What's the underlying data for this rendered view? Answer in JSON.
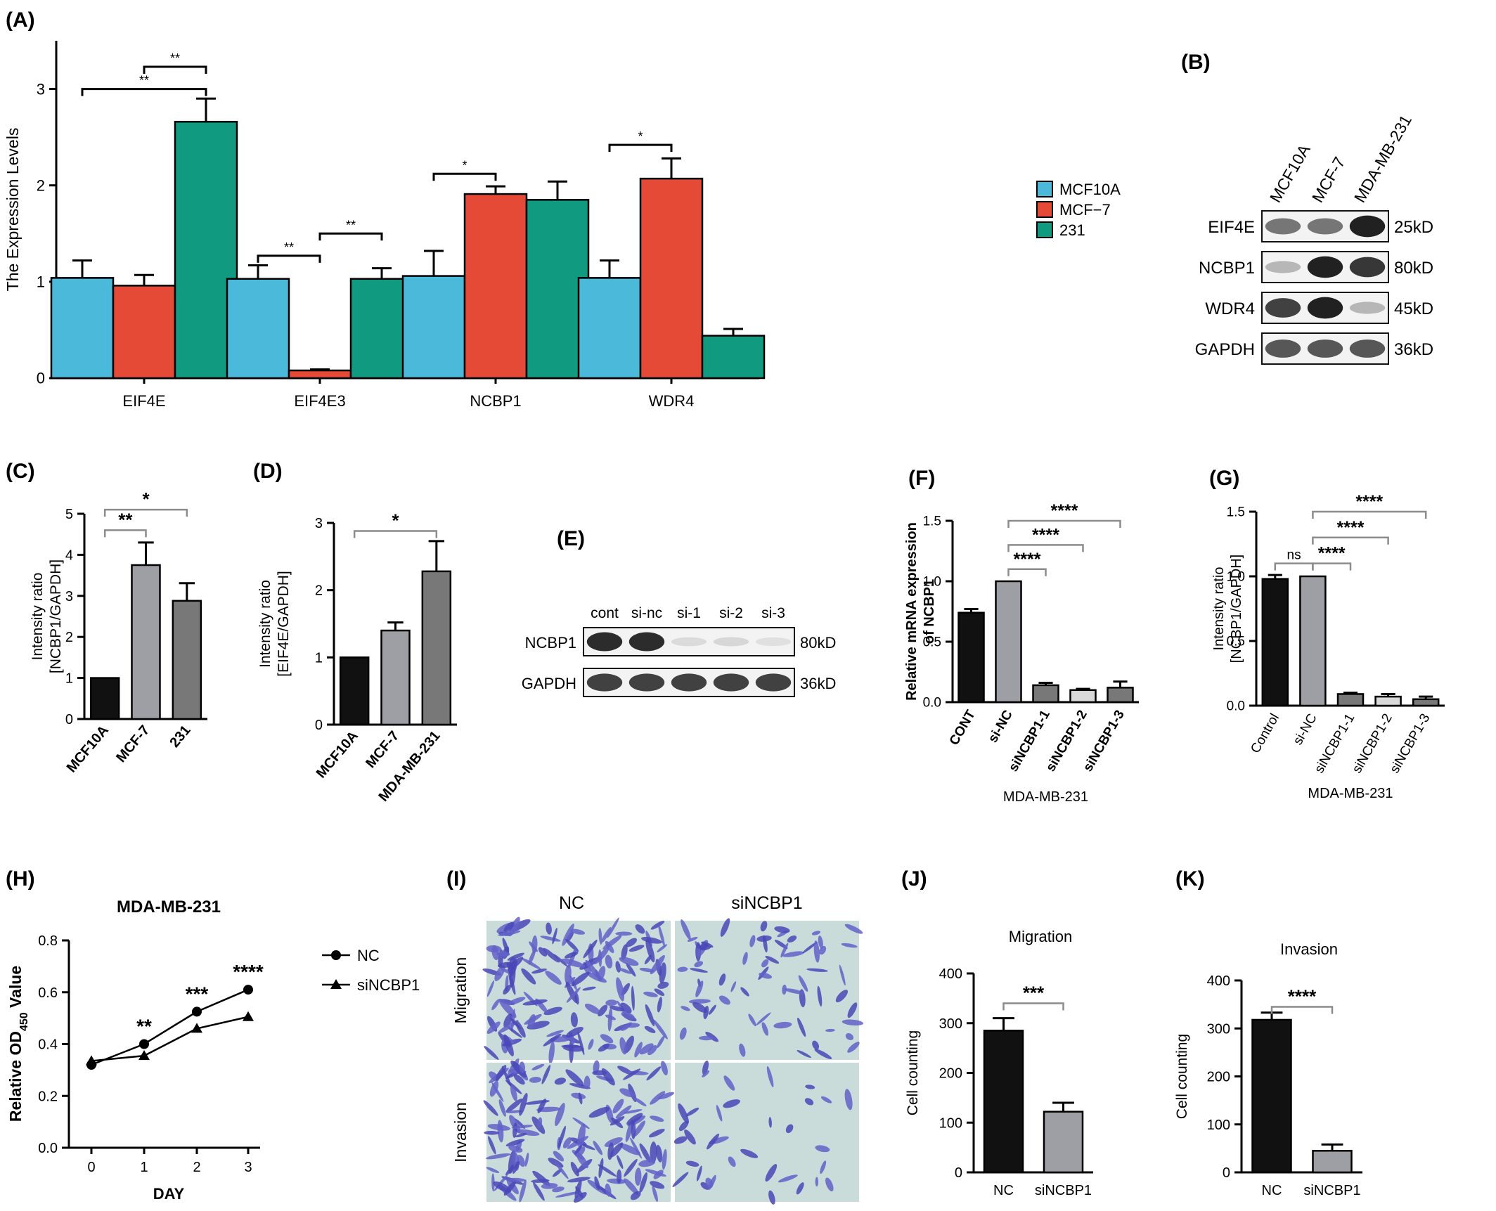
{
  "panel_labels": {
    "A": "(A)",
    "B": "(B)",
    "C": "(C)",
    "D": "(D)",
    "E": "(E)",
    "F": "(F)",
    "G": "(G)",
    "H": "(H)",
    "I": "(I)",
    "J": "(J)",
    "K": "(K)"
  },
  "colors": {
    "mcf10a": "#4bb9d9",
    "mcf7": "#e44a35",
    "c231": "#109a7f",
    "black": "#111111",
    "gray": "#9e9ea5",
    "darkgray": "#787878",
    "lightgray": "#d9d9d9"
  },
  "blots_B": {
    "lanes": [
      "MCF10A",
      "MCF-7",
      "MDA-MB-231"
    ],
    "rows": [
      {
        "name": "EIF4E",
        "size": "25kD",
        "intensity": [
          0.55,
          0.55,
          0.95
        ]
      },
      {
        "name": "NCBP1",
        "size": "80kD",
        "intensity": [
          0.25,
          0.95,
          0.85
        ]
      },
      {
        "name": "WDR4",
        "size": "45kD",
        "intensity": [
          0.8,
          0.95,
          0.25
        ]
      },
      {
        "name": "GAPDH",
        "size": "36kD",
        "intensity": [
          0.7,
          0.7,
          0.7
        ]
      }
    ]
  },
  "blots_E": {
    "lanes": [
      "cont",
      "si-nc",
      "si-1",
      "si-2",
      "si-3"
    ],
    "rows": [
      {
        "name": "NCBP1",
        "size": "80kD",
        "intensity": [
          0.9,
          0.9,
          0.08,
          0.1,
          0.06
        ]
      },
      {
        "name": "GAPDH",
        "size": "36kD",
        "intensity": [
          0.8,
          0.8,
          0.8,
          0.8,
          0.8
        ]
      }
    ]
  },
  "micro_I": {
    "cols": [
      "NC",
      "siNCBP1"
    ],
    "rows": [
      "Migration",
      "Invasion"
    ]
  },
  "chart_data": [
    {
      "panel": "A",
      "type": "bar",
      "categories": [
        "EIF4E",
        "EIF4E3",
        "NCBP1",
        "WDR4"
      ],
      "series": [
        {
          "name": "MCF10A",
          "values": [
            1.04,
            1.03,
            1.06,
            1.04
          ],
          "err": [
            0.18,
            0.14,
            0.26,
            0.18
          ]
        },
        {
          "name": "MCF−7",
          "values": [
            0.96,
            0.08,
            1.91,
            2.07
          ],
          "err": [
            0.11,
            0.01,
            0.08,
            0.21
          ]
        },
        {
          "name": "231",
          "values": [
            2.66,
            1.03,
            1.85,
            0.44
          ],
          "err": [
            0.24,
            0.11,
            0.19,
            0.07
          ]
        }
      ],
      "ylabel": "The Expression Levels",
      "ylim": [
        0,
        3.5
      ],
      "yticks": [
        0,
        1,
        2,
        3
      ],
      "legend": "right",
      "sig": [
        {
          "cat": 0,
          "a": 1,
          "b": 2,
          "label": "**",
          "y": 3.23
        },
        {
          "cat": 0,
          "a": 0,
          "b": 2,
          "label": "**",
          "y": 3.0
        },
        {
          "cat": 1,
          "a": 0,
          "b": 1,
          "label": "**",
          "y": 1.27
        },
        {
          "cat": 1,
          "a": 1,
          "b": 2,
          "label": "**",
          "y": 1.5
        },
        {
          "cat": 2,
          "a": 0,
          "b": 1,
          "label": "*",
          "y": 2.12
        },
        {
          "cat": 3,
          "a": 0,
          "b": 1,
          "label": "*",
          "y": 2.42
        }
      ]
    },
    {
      "panel": "C",
      "type": "bar",
      "categories": [
        "MCF10A",
        "MCF-7",
        "231"
      ],
      "values": [
        1.0,
        3.75,
        2.88
      ],
      "err": [
        0,
        0.55,
        0.43
      ],
      "ylabel": [
        "Intensity ratio",
        "[NCBP1/GAPDH]"
      ],
      "ylim": [
        0,
        5
      ],
      "yticks": [
        0,
        1,
        2,
        3,
        4,
        5
      ],
      "sig": [
        {
          "a": 0,
          "b": 1,
          "label": "**",
          "y": 4.6
        },
        {
          "a": 0,
          "b": 2,
          "label": "*",
          "y": 5.1
        }
      ]
    },
    {
      "panel": "D",
      "type": "bar",
      "categories": [
        "MCF10A",
        "MCF-7",
        "MDA-MB-231"
      ],
      "values": [
        1.0,
        1.4,
        2.28
      ],
      "err": [
        0,
        0.12,
        0.45
      ],
      "ylabel": [
        "Intensity ratio",
        "[EIF4E/GAPDH]"
      ],
      "ylim": [
        0,
        3
      ],
      "yticks": [
        0,
        1,
        2,
        3
      ],
      "sig": [
        {
          "a": 0,
          "b": 2,
          "label": "*",
          "y": 2.88
        }
      ]
    },
    {
      "panel": "F",
      "type": "bar",
      "categories": [
        "CONT",
        "si-NC",
        "siNCBP1-1",
        "siNCBP1-2",
        "siNCBP1-3"
      ],
      "values": [
        0.74,
        1.0,
        0.14,
        0.1,
        0.12
      ],
      "err": [
        0.03,
        0,
        0.02,
        0.01,
        0.05
      ],
      "ylabel": [
        "Relative mRNA expression",
        "of NCBP1"
      ],
      "xlabel": "MDA-MB-231",
      "ylim": [
        0,
        1.5
      ],
      "yticks": [
        0,
        0.5,
        1.0,
        1.5
      ],
      "ytick_labels": [
        "0.0",
        "0.5",
        "1.0",
        "1.5"
      ],
      "sig": [
        {
          "a": 1,
          "b": 2,
          "label": "****",
          "y": 1.1
        },
        {
          "a": 1,
          "b": 3,
          "label": "****",
          "y": 1.3
        },
        {
          "a": 1,
          "b": 4,
          "label": "****",
          "y": 1.5
        }
      ]
    },
    {
      "panel": "G",
      "type": "bar",
      "categories": [
        "Control",
        "si-NC",
        "siNCBP1-1",
        "siNCBP1-2",
        "siNCBP1-3"
      ],
      "values": [
        0.98,
        1.0,
        0.09,
        0.07,
        0.05
      ],
      "err": [
        0.03,
        0,
        0.01,
        0.02,
        0.02
      ],
      "ylabel": [
        "Intensity ratio",
        "[NCBP1/GAPDH]"
      ],
      "xlabel": "MDA-MB-231",
      "ylim": [
        0,
        1.5
      ],
      "yticks": [
        0,
        0.5,
        1.0,
        1.5
      ],
      "ytick_labels": [
        "0.0",
        "0.5",
        "1.0",
        "1.5"
      ],
      "sig": [
        {
          "a": 0,
          "b": 1,
          "label": "ns",
          "y": 1.1
        },
        {
          "a": 1,
          "b": 2,
          "label": "****",
          "y": 1.1
        },
        {
          "a": 1,
          "b": 3,
          "label": "****",
          "y": 1.3
        },
        {
          "a": 1,
          "b": 4,
          "label": "****",
          "y": 1.5
        }
      ]
    },
    {
      "panel": "H",
      "type": "line",
      "title": "MDA-MB-231",
      "x": [
        0,
        1,
        2,
        3
      ],
      "series": [
        {
          "name": "NC",
          "marker": "circle",
          "values": [
            0.32,
            0.4,
            0.525,
            0.61
          ]
        },
        {
          "name": "siNCBP1",
          "marker": "triangle",
          "values": [
            0.335,
            0.355,
            0.46,
            0.505
          ]
        }
      ],
      "xlabel": "DAY",
      "ylabel": "Relative OD",
      "ylabel_sub": "450",
      "ylabel_end": " Value",
      "ylim": [
        0,
        0.8
      ],
      "yticks": [
        0,
        0.2,
        0.4,
        0.6,
        0.8
      ],
      "ytick_labels": [
        "0.0",
        "0.2",
        "0.4",
        "0.6",
        "0.8"
      ],
      "stars": [
        {
          "x": 1,
          "label": "**"
        },
        {
          "x": 2,
          "label": "***"
        },
        {
          "x": 3,
          "label": "****"
        }
      ]
    },
    {
      "panel": "J",
      "type": "bar",
      "title": "Migration",
      "categories": [
        "NC",
        "siNCBP1"
      ],
      "values": [
        285,
        122
      ],
      "err": [
        25,
        18
      ],
      "ylabel": "Cell counting",
      "ylim": [
        0,
        400
      ],
      "yticks": [
        0,
        100,
        200,
        300,
        400
      ],
      "sig": [
        {
          "a": 0,
          "b": 1,
          "label": "***",
          "y": 340
        }
      ]
    },
    {
      "panel": "K",
      "type": "bar",
      "title": "Invasion",
      "categories": [
        "NC",
        "siNCBP1"
      ],
      "values": [
        318,
        45
      ],
      "err": [
        15,
        13
      ],
      "ylabel": "Cell counting",
      "ylim": [
        0,
        400
      ],
      "yticks": [
        0,
        100,
        200,
        300,
        400
      ],
      "sig": [
        {
          "a": 0,
          "b": 1,
          "label": "****",
          "y": 345
        }
      ]
    }
  ]
}
